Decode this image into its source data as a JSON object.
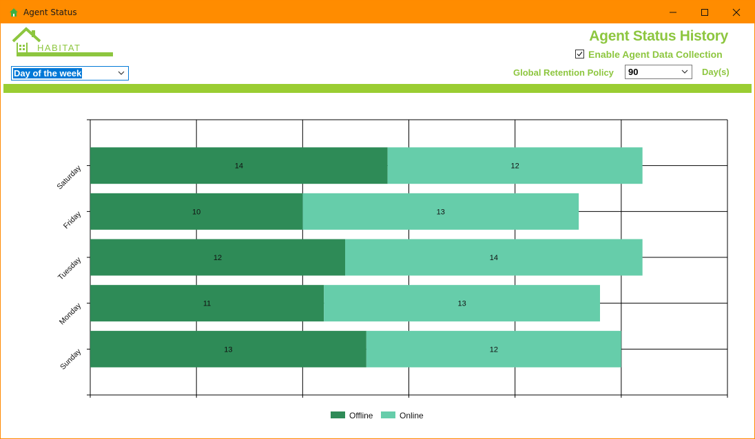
{
  "window": {
    "title": "Agent Status",
    "app_icon": "house-icon",
    "controls": [
      "minimize-icon",
      "maximize-icon",
      "close-icon"
    ]
  },
  "logo": {
    "text": "HABITAT"
  },
  "header": {
    "title": "Agent Status History",
    "enable_collection_label": "Enable Agent Data Collection",
    "enable_collection_checked": true,
    "retention_label": "Global Retention Policy",
    "retention_value": "90",
    "retention_unit": "Day(s)",
    "period_value": "Day of the week"
  },
  "colors": {
    "titlebar": "#ff8c00",
    "accent_green": "#8dc63f",
    "offline": "#2e8b57",
    "online": "#66cdaa",
    "selection": "#0078d7"
  },
  "chart_data": {
    "type": "bar",
    "orientation": "horizontal",
    "stacked": true,
    "categories": [
      "Saturday",
      "Friday",
      "Tuesday",
      "Monday",
      "Sunday"
    ],
    "series": [
      {
        "name": "Offline",
        "color": "#2e8b57",
        "values": [
          14,
          10,
          12,
          11,
          13
        ]
      },
      {
        "name": "Online",
        "color": "#66cdaa",
        "values": [
          12,
          13,
          14,
          13,
          12
        ]
      }
    ],
    "xlim": [
      0,
      30
    ],
    "grid": true,
    "legend": "bottom-center",
    "data_labels": true
  }
}
